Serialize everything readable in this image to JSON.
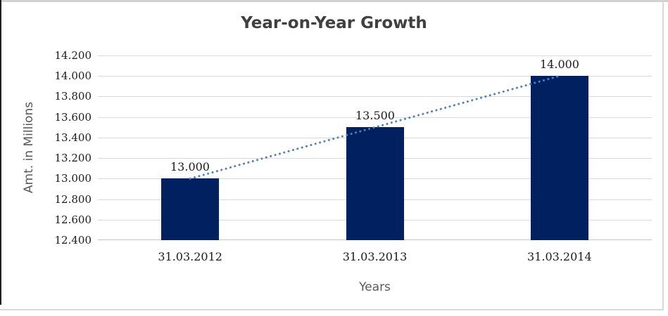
{
  "chart_data": {
    "type": "bar",
    "title": "Year-on-Year Growth",
    "xlabel": "Years",
    "ylabel": "Amt. in Millions",
    "categories": [
      "31.03.2012",
      "31.03.2013",
      "31.03.2014"
    ],
    "values": [
      13000,
      13500,
      14000
    ],
    "value_labels": [
      "13.000",
      "13.500",
      "14.000"
    ],
    "ylim": [
      12400,
      14200
    ],
    "ytick_step": 200,
    "ytick_labels": [
      "12.400",
      "12.600",
      "12.800",
      "13.000",
      "13.200",
      "13.400",
      "13.600",
      "13.800",
      "14.000",
      "14.200"
    ],
    "grid": true,
    "legend": "none",
    "trendline": {
      "type": "linear",
      "style": "dotted"
    },
    "colors": {
      "bar": "#002060",
      "trendline": "#4e81bd",
      "gridline": "#d9d9d9",
      "baseline": "#c6c6c6",
      "title_text": "#404040",
      "axis_title_text": "#595959",
      "tick_label_text": "#1c1c1c",
      "background": "#ffffff"
    }
  }
}
